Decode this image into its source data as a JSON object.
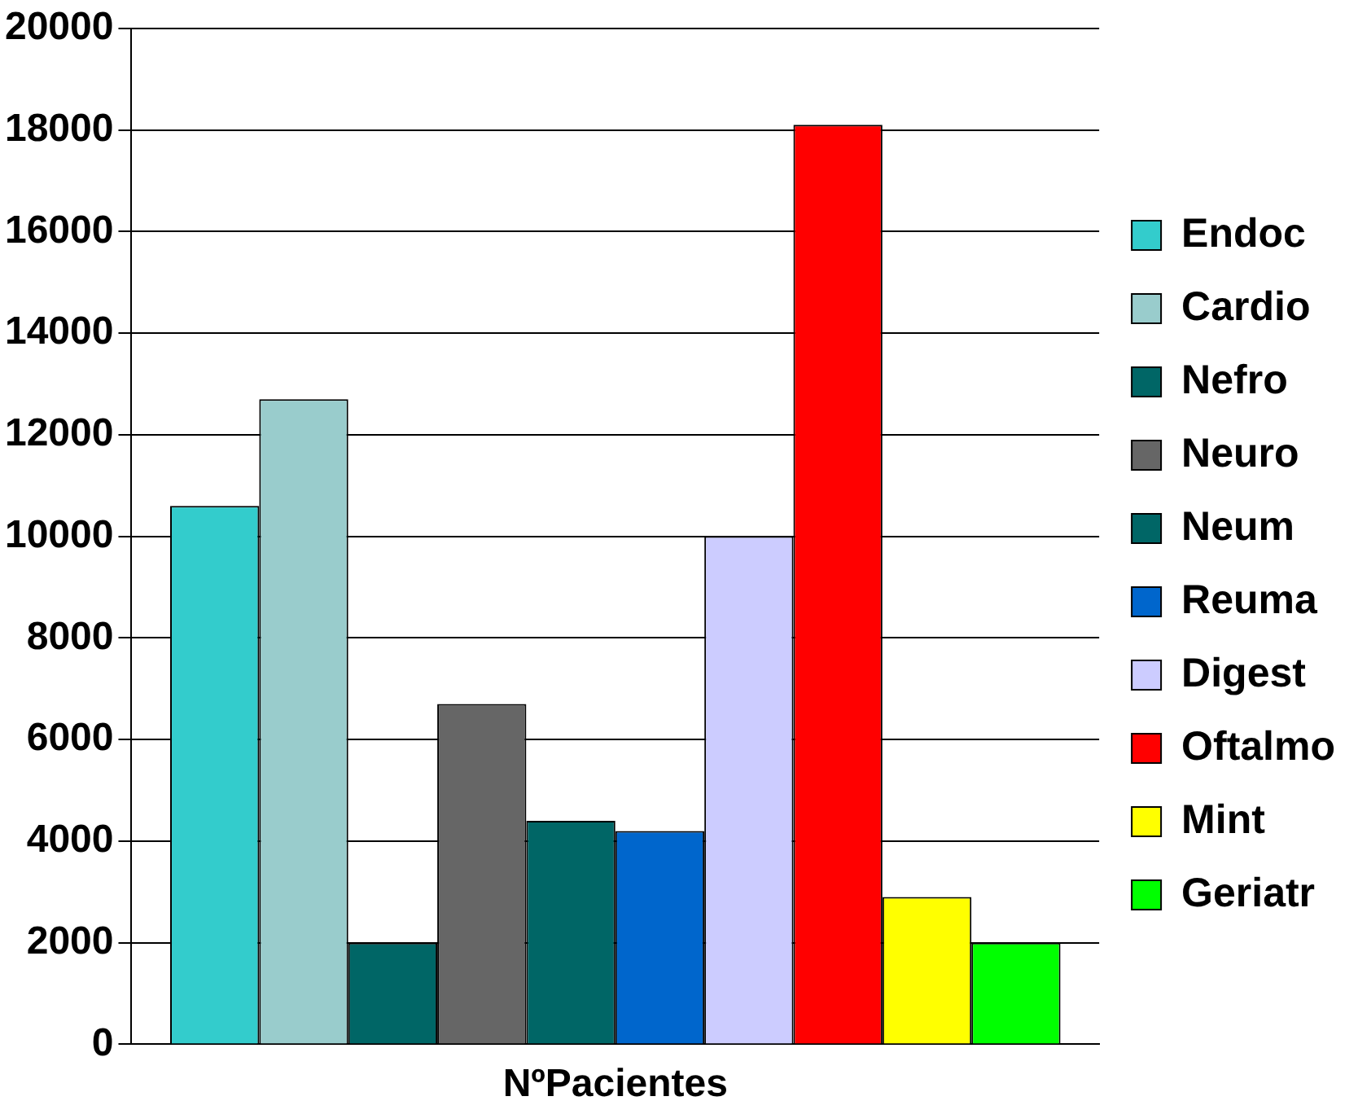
{
  "chart_data": {
    "type": "bar",
    "categories": [
      "NºPacientes"
    ],
    "series": [
      {
        "name": "Endoc",
        "color": "#33cccc",
        "values": [
          10600
        ]
      },
      {
        "name": "Cardio",
        "color": "#99cccc",
        "values": [
          12700
        ]
      },
      {
        "name": "Nefro",
        "color": "#006666",
        "values": [
          2000
        ]
      },
      {
        "name": "Neuro",
        "color": "#666666",
        "values": [
          6700
        ]
      },
      {
        "name": "Neum",
        "color": "#006666",
        "values": [
          4400
        ]
      },
      {
        "name": "Reuma",
        "color": "#0066cc",
        "values": [
          4200
        ]
      },
      {
        "name": "Digest",
        "color": "#ccccff",
        "values": [
          10000
        ]
      },
      {
        "name": "Oftalmo",
        "color": "#ff0000",
        "values": [
          18100
        ]
      },
      {
        "name": "Mint",
        "color": "#ffff00",
        "values": [
          2900
        ]
      },
      {
        "name": "Geriatr",
        "color": "#00ff00",
        "values": [
          2000
        ]
      }
    ],
    "ylim": [
      0,
      20000
    ],
    "yticks": [
      0,
      2000,
      4000,
      6000,
      8000,
      10000,
      12000,
      14000,
      16000,
      18000,
      20000
    ],
    "grid": "y",
    "legend": "right"
  }
}
